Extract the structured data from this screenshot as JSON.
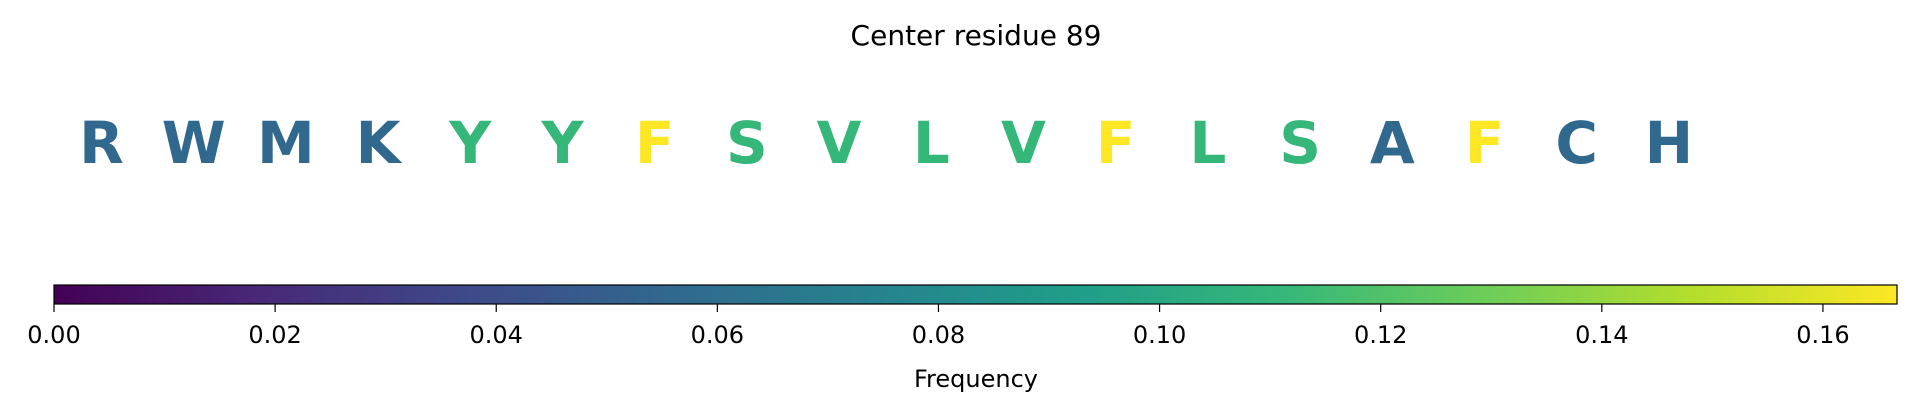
{
  "chart_data": {
    "type": "colored_letters",
    "title": "Center residue 89",
    "categories": [
      "R",
      "W",
      "M",
      "K",
      "Y",
      "Y",
      "F",
      "S",
      "V",
      "L",
      "V",
      "F",
      "L",
      "S",
      "A",
      "F",
      "C",
      "H"
    ],
    "values": [
      0.0556,
      0.0556,
      0.0556,
      0.0556,
      0.1111,
      0.1111,
      0.1667,
      0.1111,
      0.1111,
      0.1111,
      0.1111,
      0.1667,
      0.1111,
      0.1111,
      0.0556,
      0.1667,
      0.0556,
      0.0556
    ],
    "colormap": "viridis",
    "xlabel": "Frequency",
    "xlim": [
      0,
      0.1667
    ],
    "xticks": [
      {
        "value": 0,
        "label": "0.00"
      },
      {
        "value": 0.02,
        "label": "0.02"
      },
      {
        "value": 0.04,
        "label": "0.04"
      },
      {
        "value": 0.06,
        "label": "0.06"
      },
      {
        "value": 0.08,
        "label": "0.08"
      },
      {
        "value": 0.1,
        "label": "0.10"
      },
      {
        "value": 0.12,
        "label": "0.12"
      },
      {
        "value": 0.14,
        "label": "0.14"
      },
      {
        "value": 0.16,
        "label": "0.16"
      }
    ]
  }
}
